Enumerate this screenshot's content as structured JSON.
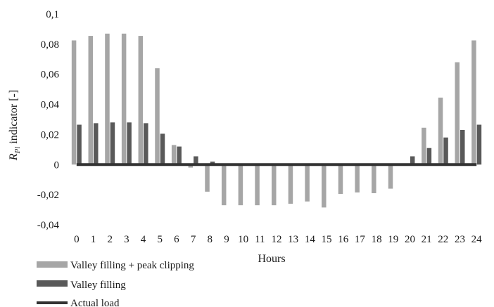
{
  "chart_data": {
    "type": "bar",
    "xlabel": "Hours",
    "ylabel_main": "R",
    "ylabel_sub": "Pl",
    "ylabel_rest": " indicator [-]",
    "ylim": [
      -0.04,
      0.1
    ],
    "yticks": [
      0.1,
      0.08,
      0.06,
      0.04,
      0.02,
      0,
      -0.02,
      -0.04
    ],
    "ytick_labels": [
      "0,1",
      "0,08",
      "0,06",
      "0,04",
      "0,02",
      "0",
      "-0,02",
      "-0,04"
    ],
    "grid": false,
    "legend_position": "bottom-left",
    "categories": [
      "0",
      "1",
      "2",
      "3",
      "4",
      "5",
      "6",
      "7",
      "8",
      "9",
      "10",
      "11",
      "12",
      "13",
      "14",
      "15",
      "16",
      "17",
      "18",
      "19",
      "20",
      "21",
      "22",
      "23",
      "24"
    ],
    "series": [
      {
        "name": "Valley filling + peak clipping",
        "kind": "bar",
        "color": "#a6a6a6",
        "values": [
          0.0825,
          0.0855,
          0.087,
          0.087,
          0.0855,
          0.064,
          0.013,
          -0.002,
          -0.018,
          -0.027,
          -0.027,
          -0.027,
          -0.027,
          -0.026,
          -0.0245,
          -0.0285,
          -0.0195,
          -0.0185,
          -0.019,
          -0.016,
          0,
          0.0245,
          0.0445,
          0.068,
          0.0825
        ]
      },
      {
        "name": "Valley filling",
        "kind": "bar",
        "color": "#595959",
        "values": [
          0.0265,
          0.0275,
          0.028,
          0.028,
          0.0275,
          0.0205,
          0.012,
          0.0055,
          0.002,
          0,
          0,
          0,
          0,
          0,
          0,
          0,
          0,
          0,
          0,
          0,
          0.0055,
          0.011,
          0.018,
          0.023,
          0.0265
        ]
      },
      {
        "name": "Actual load",
        "kind": "line",
        "color": "#333333",
        "values": [
          0,
          0,
          0,
          0,
          0,
          0,
          0,
          0,
          0,
          0,
          0,
          0,
          0,
          0,
          0,
          0,
          0,
          0,
          0,
          0,
          0,
          0,
          0,
          0,
          0
        ]
      }
    ]
  }
}
